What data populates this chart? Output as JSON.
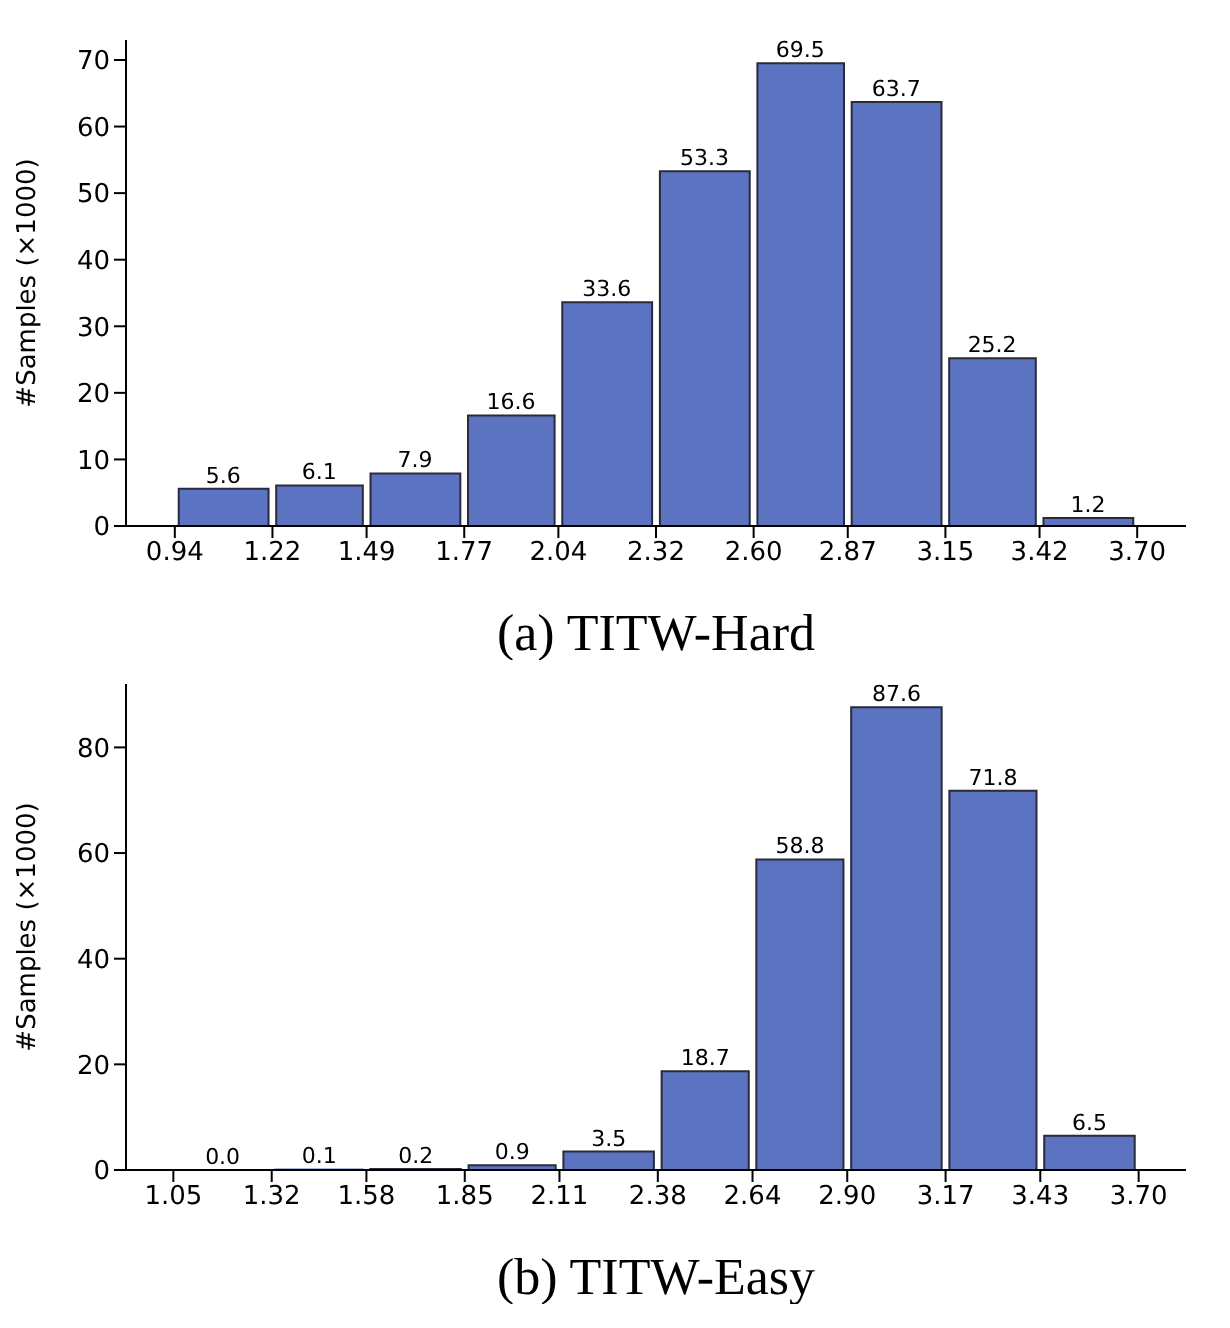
{
  "chart_data": [
    {
      "type": "histogram",
      "xlabel": "(a) TITW-Hard",
      "ylabel": "#Samples (×1000)",
      "bins": [
        0.94,
        1.22,
        1.49,
        1.77,
        2.04,
        2.32,
        2.6,
        2.87,
        3.15,
        3.42,
        3.7
      ],
      "values": [
        5.6,
        6.1,
        7.9,
        16.6,
        33.6,
        53.3,
        69.5,
        63.7,
        25.2,
        1.2
      ],
      "value_labels": [
        "5.6",
        "6.1",
        "7.9",
        "16.6",
        "33.6",
        "53.3",
        "69.5",
        "63.7",
        "25.2",
        "1.2"
      ],
      "color": "#5b73c0",
      "xlim": [
        0.8,
        3.84
      ],
      "ylim": [
        0,
        73
      ],
      "xticks": [
        0.94,
        1.22,
        1.49,
        1.77,
        2.04,
        2.32,
        {
          "value": 2.6,
          "label": "2.60"
        },
        2.87,
        3.15,
        3.42,
        {
          "value": 3.7,
          "label": "3.70"
        }
      ],
      "yticks": [
        0,
        10,
        20,
        30,
        40,
        50,
        60,
        70
      ]
    },
    {
      "type": "histogram",
      "xlabel": "(b) TITW-Easy",
      "ylabel": "#Samples (×1000)",
      "bins": [
        1.05,
        1.32,
        1.58,
        1.85,
        2.11,
        2.38,
        2.64,
        2.9,
        3.17,
        3.43,
        3.7
      ],
      "values": [
        0,
        0.1,
        0.2,
        0.9,
        3.5,
        18.7,
        58.8,
        87.6,
        71.8,
        6.5
      ],
      "value_labels": [
        "0.0",
        "0.1",
        "0.2",
        "0.9",
        "3.5",
        "18.7",
        "58.8",
        "87.6",
        "71.8",
        "6.5"
      ],
      "color": "#5b73c0",
      "xlim": [
        0.92,
        3.83
      ],
      "ylim": [
        0,
        92
      ],
      "xticks": [
        1.05,
        1.32,
        1.58,
        1.85,
        2.11,
        2.38,
        2.64,
        {
          "value": 2.9,
          "label": "2.90"
        },
        3.17,
        3.43,
        {
          "value": 3.7,
          "label": "3.70"
        }
      ],
      "yticks": [
        0,
        20,
        40,
        60,
        80
      ]
    }
  ]
}
